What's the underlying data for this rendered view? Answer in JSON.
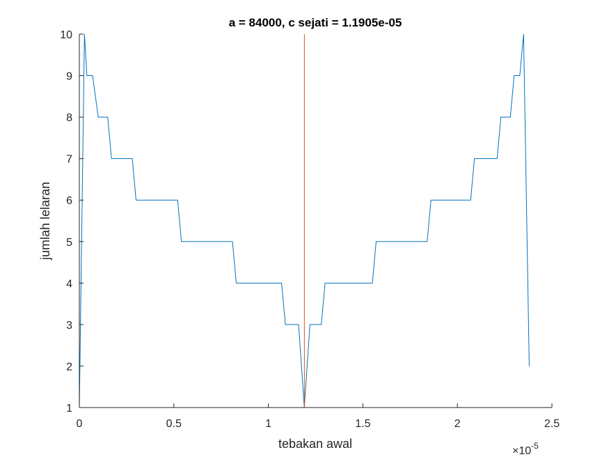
{
  "chart_data": {
    "type": "line",
    "title": "a = 84000, c sejati = 1.1905e-05",
    "xlabel": "tebakan awal",
    "ylabel": "jumlah lelaran",
    "x_exponent_label": "×10",
    "x_exponent_power": "-5",
    "xlim": [
      0,
      2.5
    ],
    "ylim": [
      1,
      10
    ],
    "xticks": [
      "0",
      "0.5",
      "1",
      "1.5",
      "2",
      "2.5"
    ],
    "yticks": [
      "1",
      "2",
      "3",
      "4",
      "5",
      "6",
      "7",
      "8",
      "9",
      "10"
    ],
    "grid": false,
    "series": [
      {
        "color": "#0072BD",
        "x": [
          0,
          0.027,
          0.04,
          0.07,
          0.1,
          0.15,
          0.17,
          0.28,
          0.3,
          0.52,
          0.54,
          0.81,
          0.83,
          1.07,
          1.09,
          1.16,
          1.19,
          1.22,
          1.28,
          1.3,
          1.55,
          1.57,
          1.84,
          1.86,
          2.07,
          2.09,
          2.21,
          2.23,
          2.28,
          2.3,
          2.33,
          2.35,
          2.38
        ],
        "y": [
          1,
          10,
          9,
          9,
          8,
          8,
          7,
          7,
          6,
          6,
          5,
          5,
          4,
          4,
          3,
          3,
          1,
          3,
          3,
          4,
          4,
          5,
          5,
          6,
          6,
          7,
          7,
          8,
          8,
          9,
          9,
          10,
          2
        ]
      },
      {
        "color": "#D95319",
        "x": [
          1.1905,
          1.1905
        ],
        "y": [
          1,
          10
        ]
      }
    ]
  }
}
